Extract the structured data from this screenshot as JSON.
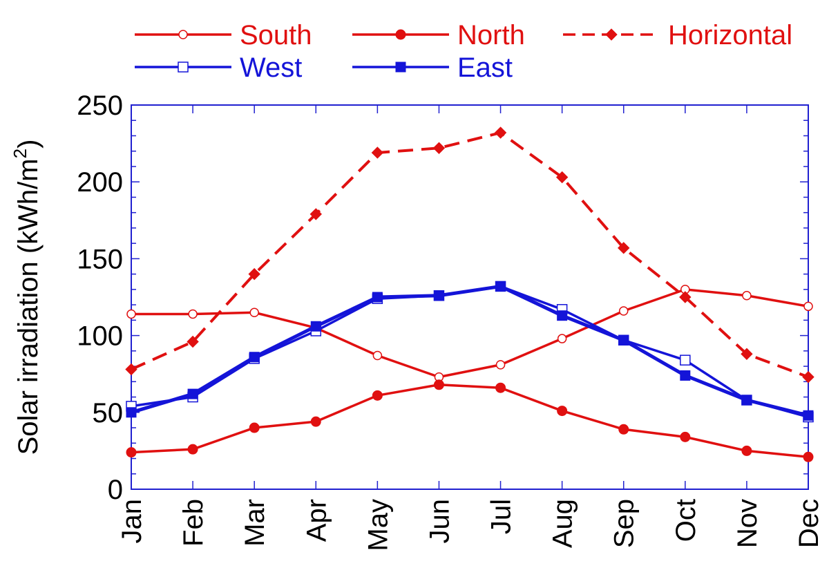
{
  "chart_data": {
    "type": "line",
    "title": "",
    "xlabel": "",
    "ylabel": "Solar irradiation (kWh/m",
    "ylabel_superscript": "2",
    "ylabel_suffix": ")",
    "categories": [
      "Jan",
      "Feb",
      "Mar",
      "Apr",
      "May",
      "Jun",
      "Jul",
      "Aug",
      "Sep",
      "Oct",
      "Nov",
      "Dec"
    ],
    "ylim": [
      0,
      250
    ],
    "yticks": [
      0,
      50,
      100,
      150,
      200,
      250
    ],
    "legend_position": "top",
    "series": [
      {
        "name": "South",
        "color": "#e01010",
        "marker": "circle-open",
        "dash": "solid",
        "values": [
          114,
          114,
          115,
          105,
          87,
          73,
          81,
          98,
          116,
          130,
          126,
          119
        ]
      },
      {
        "name": "North",
        "color": "#e01010",
        "marker": "circle-filled",
        "dash": "solid",
        "values": [
          24,
          26,
          40,
          44,
          61,
          68,
          66,
          51,
          39,
          34,
          25,
          21
        ]
      },
      {
        "name": "Horizontal",
        "color": "#e01010",
        "marker": "diamond-filled",
        "dash": "dashed",
        "values": [
          78,
          96,
          140,
          179,
          219,
          222,
          232,
          203,
          157,
          125,
          88,
          73
        ]
      },
      {
        "name": "West",
        "color": "#1414d8",
        "marker": "square-open",
        "dash": "solid",
        "values": [
          54,
          60,
          85,
          103,
          124,
          126,
          132,
          117,
          97,
          84,
          58,
          47
        ]
      },
      {
        "name": "East",
        "color": "#1414d8",
        "marker": "square-filled",
        "dash": "solid",
        "values": [
          50,
          62,
          86,
          106,
          125,
          126,
          132,
          113,
          97,
          74,
          58,
          48
        ]
      }
    ]
  }
}
